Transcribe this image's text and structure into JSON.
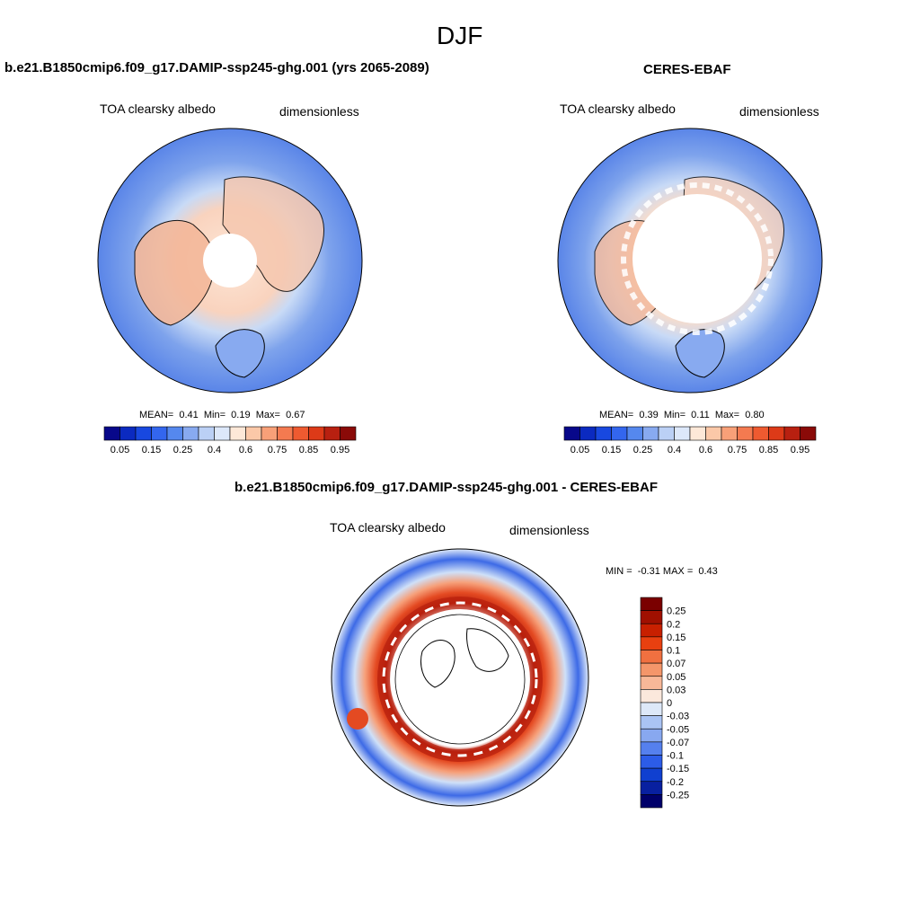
{
  "page": {
    "title": "DJF"
  },
  "panels": [
    {
      "title": "b.e21.B1850cmip6.f09_g17.DAMIP-ssp245-ghg.001 (yrs 2065-2089)",
      "left_label": "TOA clearsky albedo",
      "right_label": "dimensionless",
      "stats": {
        "mean_label": "MEAN=",
        "mean": "0.41",
        "min_label": "Min=",
        "min": "0.19",
        "max_label": "Max=",
        "max": "0.67"
      },
      "polar_hole": "small"
    },
    {
      "title": "CERES-EBAF",
      "left_label": "TOA clearsky albedo",
      "right_label": "dimensionless",
      "stats": {
        "mean_label": "MEAN=",
        "mean": "0.39",
        "min_label": "Min=",
        "min": "0.11",
        "max_label": "Max=",
        "max": "0.80"
      },
      "polar_hole": "large"
    }
  ],
  "abs_colorbar": {
    "colors": [
      "#08088a",
      "#0b2ac0",
      "#1848e0",
      "#3366ee",
      "#5588ee",
      "#88aaf0",
      "#bbd0f5",
      "#dde8fa",
      "#fde8d8",
      "#fbc8a8",
      "#f8a078",
      "#f47a50",
      "#ee5a30",
      "#dd3a18",
      "#b82010",
      "#8a0a08"
    ],
    "tick_labels": [
      "0.05",
      "0.15",
      "0.25",
      "0.4",
      "0.6",
      "0.75",
      "0.85",
      "0.95"
    ]
  },
  "diff_panel": {
    "title": "b.e21.B1850cmip6.f09_g17.DAMIP-ssp245-ghg.001 - CERES-EBAF",
    "left_label": "TOA clearsky albedo",
    "right_label": "dimensionless",
    "range": {
      "min_label": "MIN =",
      "min": "-0.31",
      "max_label": "MAX =",
      "max": "0.43"
    },
    "colorbar": {
      "colors": [
        "#7a0000",
        "#a01000",
        "#c82000",
        "#e84010",
        "#f07040",
        "#f4966a",
        "#f8b898",
        "#fbe8dc",
        "#dde8f8",
        "#aac4f4",
        "#88a8f0",
        "#5580ee",
        "#2c5ce8",
        "#1040d0",
        "#0820a0",
        "#00006a"
      ],
      "tick_labels": [
        "0.25",
        "0.2",
        "0.15",
        "0.1",
        "0.07",
        "0.05",
        "0.03",
        "0",
        "-0.03",
        "-0.05",
        "-0.07",
        "-0.1",
        "-0.15",
        "-0.2",
        "-0.25"
      ]
    }
  }
}
